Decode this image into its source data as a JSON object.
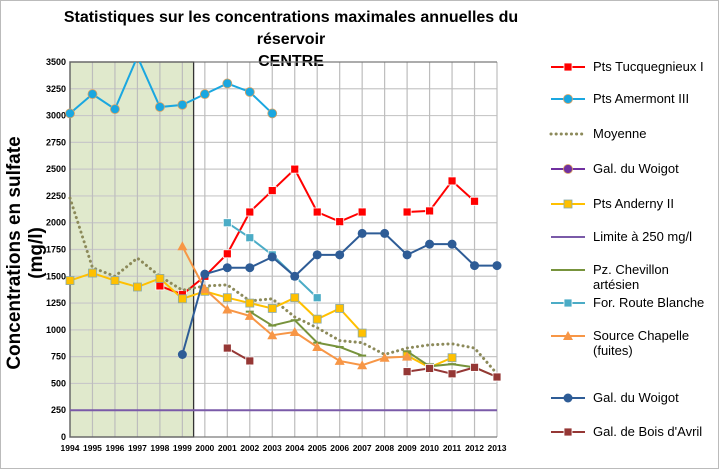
{
  "chart_data": {
    "type": "line",
    "title": "Statistiques sur les concentrations maximales annuelles du réservoir CENTRE",
    "title_lines": [
      "Statistiques sur les concentrations maximales annuelles du réservoir",
      "CENTRE"
    ],
    "xlabel": "",
    "ylabel": "Concentrations en sulfate  (mg/l)",
    "x": [
      1994,
      1995,
      1996,
      1997,
      1998,
      1999,
      2000,
      2001,
      2002,
      2003,
      2004,
      2005,
      2006,
      2007,
      2008,
      2009,
      2010,
      2011,
      2012,
      2013
    ],
    "ylim": [
      0,
      3500
    ],
    "yticks": [
      0,
      250,
      500,
      750,
      1000,
      1250,
      1500,
      1750,
      2000,
      2250,
      2500,
      2750,
      3000,
      3250,
      3500
    ],
    "grid": true,
    "legend_position": "right",
    "shaded_period": [
      1994,
      1999.5
    ],
    "shaded_color": "#e0e9cc",
    "series": [
      {
        "name": "Pts Tucquegnieux I",
        "color": "#ff0000",
        "marker": "square",
        "style": "solid",
        "values": [
          null,
          null,
          null,
          null,
          1410,
          1330,
          1500,
          1710,
          2100,
          2300,
          2500,
          2100,
          2010,
          2100,
          null,
          2100,
          2110,
          2390,
          2200,
          null
        ]
      },
      {
        "name": "Pts Amermont III",
        "color": "#1aa7e0",
        "marker": "circle",
        "style": "solid",
        "values": [
          3020,
          3200,
          3060,
          3550,
          3080,
          3100,
          3200,
          3300,
          3220,
          3020,
          null,
          null,
          null,
          null,
          null,
          null,
          null,
          null,
          null,
          null
        ]
      },
      {
        "name": "Moyenne",
        "color": "#8c8a5a",
        "marker": "none",
        "style": "dotted",
        "values": [
          2230,
          1580,
          1500,
          1670,
          1500,
          1370,
          1410,
          1420,
          1270,
          1290,
          1120,
          1020,
          900,
          880,
          770,
          830,
          860,
          870,
          830,
          590
        ]
      },
      {
        "name": "Gal. du Woigot",
        "color": "#7030a0",
        "marker": "circle",
        "style": "solid",
        "values": [
          null,
          null,
          null,
          null,
          null,
          null,
          null,
          null,
          null,
          null,
          null,
          null,
          null,
          null,
          null,
          null,
          null,
          null,
          null,
          null
        ]
      },
      {
        "name": "Pts Anderny II",
        "color": "#ffc000",
        "marker": "square",
        "style": "solid",
        "values": [
          1460,
          1530,
          1460,
          1400,
          1480,
          1290,
          1360,
          1300,
          1250,
          1200,
          1300,
          1100,
          1200,
          970,
          null,
          760,
          650,
          740,
          null,
          null
        ]
      },
      {
        "name": "Limite à 250 mg/l",
        "color": "#7a5aa8",
        "marker": "none",
        "style": "solid",
        "values": [
          250,
          250,
          250,
          250,
          250,
          250,
          250,
          250,
          250,
          250,
          250,
          250,
          250,
          250,
          250,
          250,
          250,
          250,
          250,
          250
        ]
      },
      {
        "name": "Pz. Chevillon artésien",
        "color": "#77933c",
        "marker": "dash",
        "style": "solid",
        "values": [
          null,
          null,
          null,
          null,
          null,
          null,
          null,
          null,
          1170,
          1040,
          1090,
          880,
          840,
          760,
          null,
          800,
          660,
          680,
          650,
          560
        ]
      },
      {
        "name": "For. Route Blanche",
        "color": "#4bacc6",
        "marker": "square",
        "style": "solid",
        "values": [
          null,
          null,
          null,
          null,
          null,
          null,
          null,
          2000,
          1860,
          1700,
          1500,
          1300,
          null,
          null,
          null,
          null,
          null,
          null,
          null,
          null
        ]
      },
      {
        "name": "Source Chapelle (fuites)",
        "color": "#f79646",
        "marker": "triangle",
        "style": "solid",
        "values": [
          null,
          null,
          null,
          null,
          null,
          1780,
          1380,
          1190,
          1130,
          950,
          980,
          840,
          710,
          670,
          740,
          750,
          null,
          null,
          null,
          null
        ]
      },
      {
        "name": "Gal. du Woigot",
        "color": "#2e5c96",
        "marker": "diamond",
        "style": "solid",
        "values": [
          null,
          null,
          null,
          null,
          null,
          770,
          1520,
          1580,
          1580,
          1680,
          1500,
          1700,
          1700,
          1900,
          1900,
          1700,
          1800,
          1800,
          1600,
          1600
        ]
      },
      {
        "name": "Gal. de Bois d'Avril",
        "color": "#953735",
        "marker": "square",
        "style": "solid",
        "values": [
          null,
          null,
          null,
          null,
          null,
          null,
          null,
          830,
          710,
          null,
          null,
          null,
          null,
          null,
          null,
          610,
          640,
          590,
          650,
          560
        ]
      }
    ]
  }
}
